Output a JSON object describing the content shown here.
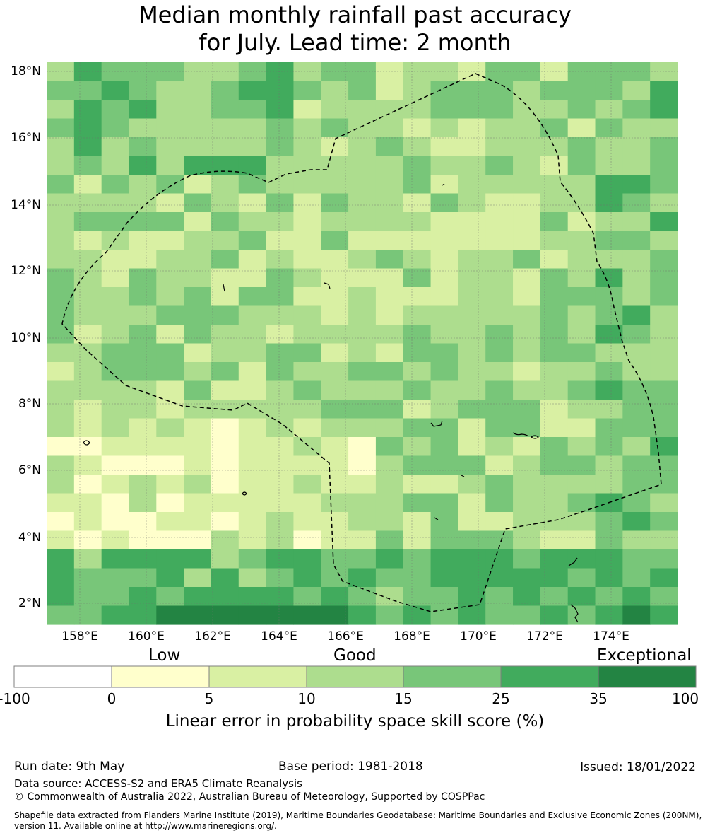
{
  "title_line1": "Median monthly rainfall past accuracy",
  "title_line2": "for July. Lead time: 2 month",
  "map": {
    "lon_range": [
      157,
      176
    ],
    "lat_range": [
      1.4,
      18.3
    ],
    "lon_ticks": [
      "158°E",
      "160°E",
      "162°E",
      "164°E",
      "166°E",
      "168°E",
      "170°E",
      "172°E",
      "174°E"
    ],
    "lat_ticks": [
      "18°N",
      "16°N",
      "14°N",
      "12°N",
      "10°N",
      "8°N",
      "6°N",
      "4°N",
      "2°N"
    ],
    "grid": true,
    "boundary": "dashed EEZ outline",
    "palette": [
      "#ffffff",
      "#ffffcc",
      "#d9f0a3",
      "#addd8e",
      "#78c679",
      "#41ab5d",
      "#238443"
    ]
  },
  "colorbar": {
    "categories": [
      "Low",
      "Good",
      "Exceptional"
    ],
    "ticks": [
      "-100",
      "0",
      "5",
      "10",
      "15",
      "25",
      "35",
      "100"
    ],
    "colors": [
      "#ffffff",
      "#ffffcc",
      "#d9f0a3",
      "#addd8e",
      "#78c679",
      "#41ab5d",
      "#238443"
    ],
    "label": "Linear error in probability space skill score (%)"
  },
  "footer": {
    "run_date": "Run date: 9th May",
    "base_period": "Base period: 1981-2018",
    "issued": "Issued: 18/01/2022",
    "data_source": "Data source: ACCESS-S2 and ERA5 Climate Reanalysis",
    "copyright": "© Commonwealth of Australia 2022, Australian Bureau of Meteorology, Supported by COSPPac",
    "shapefile_line1": "Shapefile data extracted from Flanders Marine Institute (2019), Maritime Boundaries Geodatabase: Maritime Boundaries and Exclusive Economic Zones (200NM),",
    "shapefile_line2": "version 11. Available online at http://www.marineregions.org/."
  }
}
